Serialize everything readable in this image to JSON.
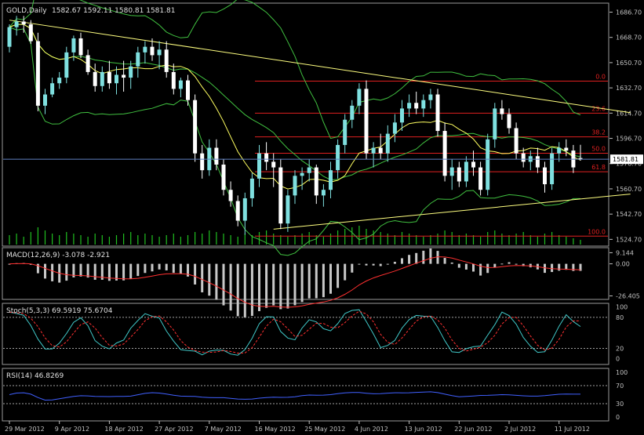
{
  "chart_data": [
    {
      "type": "candlestick",
      "panel": "price",
      "title": "GOLD,Daily",
      "ohlc_label": "1582.67 1592.11 1580.81 1581.81",
      "last_price": "1581.81",
      "y_ticks": [
        "1686.70",
        "1668.70",
        "1650.70",
        "1632.70",
        "1614.70",
        "1596.70",
        "1578.70",
        "1560.70",
        "1542.70",
        "1524.70"
      ],
      "ylim": [
        1521,
        1692
      ],
      "bull_color": "#7fe0e0",
      "bear_color": "#ffffff",
      "candles": [
        [
          1662,
          1678,
          1658,
          1676
        ],
        [
          1676,
          1684,
          1670,
          1680
        ],
        [
          1680,
          1684,
          1672,
          1678
        ],
        [
          1678,
          1681,
          1664,
          1666
        ],
        [
          1666,
          1672,
          1616,
          1620
        ],
        [
          1620,
          1632,
          1614,
          1628
        ],
        [
          1628,
          1640,
          1626,
          1636
        ],
        [
          1636,
          1644,
          1632,
          1640
        ],
        [
          1640,
          1662,
          1636,
          1658
        ],
        [
          1658,
          1670,
          1652,
          1668
        ],
        [
          1668,
          1672,
          1654,
          1656
        ],
        [
          1656,
          1660,
          1642,
          1644
        ],
        [
          1644,
          1650,
          1630,
          1634
        ],
        [
          1634,
          1648,
          1630,
          1644
        ],
        [
          1644,
          1652,
          1632,
          1636
        ],
        [
          1636,
          1648,
          1628,
          1642
        ],
        [
          1642,
          1652,
          1630,
          1640
        ],
        [
          1640,
          1652,
          1632,
          1648
        ],
        [
          1648,
          1662,
          1640,
          1658
        ],
        [
          1658,
          1666,
          1650,
          1662
        ],
        [
          1662,
          1668,
          1652,
          1656
        ],
        [
          1656,
          1666,
          1646,
          1660
        ],
        [
          1660,
          1666,
          1640,
          1644
        ],
        [
          1644,
          1650,
          1628,
          1632
        ],
        [
          1632,
          1640,
          1626,
          1638
        ],
        [
          1638,
          1642,
          1620,
          1624
        ],
        [
          1624,
          1628,
          1580,
          1586
        ],
        [
          1586,
          1592,
          1568,
          1574
        ],
        [
          1574,
          1596,
          1570,
          1590
        ],
        [
          1590,
          1596,
          1574,
          1578
        ],
        [
          1578,
          1582,
          1556,
          1560
        ],
        [
          1560,
          1566,
          1548,
          1552
        ],
        [
          1552,
          1556,
          1534,
          1538
        ],
        [
          1538,
          1558,
          1528,
          1554
        ],
        [
          1554,
          1572,
          1548,
          1568
        ],
        [
          1568,
          1592,
          1562,
          1586
        ],
        [
          1586,
          1594,
          1574,
          1580
        ],
        [
          1580,
          1586,
          1562,
          1576
        ],
        [
          1576,
          1582,
          1532,
          1536
        ],
        [
          1536,
          1560,
          1530,
          1556
        ],
        [
          1556,
          1574,
          1550,
          1570
        ],
        [
          1570,
          1576,
          1560,
          1572
        ],
        [
          1572,
          1582,
          1566,
          1576
        ],
        [
          1576,
          1578,
          1550,
          1556
        ],
        [
          1556,
          1564,
          1548,
          1560
        ],
        [
          1560,
          1580,
          1554,
          1574
        ],
        [
          1574,
          1596,
          1568,
          1592
        ],
        [
          1592,
          1614,
          1586,
          1610
        ],
        [
          1610,
          1624,
          1604,
          1620
        ],
        [
          1620,
          1636,
          1614,
          1632
        ],
        [
          1632,
          1638,
          1582,
          1586
        ],
        [
          1586,
          1594,
          1576,
          1590
        ],
        [
          1590,
          1600,
          1582,
          1586
        ],
        [
          1586,
          1606,
          1580,
          1600
        ],
        [
          1600,
          1614,
          1594,
          1608
        ],
        [
          1608,
          1624,
          1602,
          1618
        ],
        [
          1618,
          1628,
          1612,
          1622
        ],
        [
          1622,
          1630,
          1614,
          1618
        ],
        [
          1618,
          1628,
          1612,
          1624
        ],
        [
          1624,
          1632,
          1618,
          1628
        ],
        [
          1628,
          1632,
          1598,
          1602
        ],
        [
          1602,
          1608,
          1566,
          1570
        ],
        [
          1570,
          1582,
          1560,
          1576
        ],
        [
          1576,
          1580,
          1562,
          1566
        ],
        [
          1566,
          1584,
          1562,
          1580
        ],
        [
          1580,
          1588,
          1570,
          1576
        ],
        [
          1576,
          1580,
          1556,
          1560
        ],
        [
          1560,
          1600,
          1556,
          1596
        ],
        [
          1596,
          1622,
          1590,
          1618
        ],
        [
          1618,
          1624,
          1610,
          1614
        ],
        [
          1614,
          1618,
          1600,
          1604
        ],
        [
          1604,
          1608,
          1582,
          1586
        ],
        [
          1586,
          1590,
          1576,
          1580
        ],
        [
          1580,
          1588,
          1574,
          1584
        ],
        [
          1584,
          1590,
          1572,
          1576
        ],
        [
          1576,
          1580,
          1558,
          1564
        ],
        [
          1564,
          1590,
          1560,
          1586
        ],
        [
          1586,
          1594,
          1580,
          1590
        ],
        [
          1590,
          1596,
          1584,
          1588
        ],
        [
          1588,
          1592,
          1572,
          1576
        ],
        [
          1582.67,
          1592.11,
          1580.81,
          1581.81
        ]
      ],
      "volume": [
        12,
        14,
        10,
        16,
        22,
        18,
        14,
        12,
        16,
        14,
        12,
        10,
        14,
        12,
        10,
        12,
        14,
        16,
        12,
        14,
        12,
        10,
        12,
        14,
        10,
        12,
        16,
        14,
        18,
        16,
        14,
        12,
        10,
        14,
        12,
        16,
        18,
        14,
        12,
        10,
        12,
        14,
        16,
        12,
        10,
        14,
        18,
        20,
        22,
        24,
        20,
        18,
        16,
        14,
        12,
        16,
        14,
        12,
        10,
        12,
        14,
        18,
        16,
        12,
        14,
        12,
        10,
        16,
        18,
        14,
        12,
        14,
        16,
        12,
        10,
        14,
        16,
        12,
        10,
        8,
        6
      ],
      "fibonacci_levels": [
        {
          "label": "0.0",
          "value": 1637.5
        },
        {
          "label": "23.6",
          "value": 1614.7
        },
        {
          "label": "38.2",
          "value": 1597.8
        },
        {
          "label": "50.0",
          "value": 1586.1
        },
        {
          "label": "61.8",
          "value": 1572.9
        },
        {
          "label": "100.0",
          "value": 1527
        }
      ],
      "trendlines": [
        {
          "name": "resistance",
          "from": [
            0,
            1681
          ],
          "to": [
            87,
            1615
          ]
        },
        {
          "name": "support",
          "from": [
            37,
            1532
          ],
          "to": [
            87,
            1557
          ]
        }
      ]
    },
    {
      "type": "histogram",
      "panel": "macd",
      "title": "MACD(12,26,9) -3.078 -2.921",
      "y_ticks": [
        "9.144",
        "0.00",
        "-26.405"
      ],
      "ylim": [
        -28,
        12
      ],
      "signal_color": "#ff3030"
    },
    {
      "type": "line",
      "panel": "stochastic",
      "title": "Stoch(5,3,3) 69.5919 75.6704",
      "y_ticks": [
        "100",
        "80",
        "20",
        "0"
      ],
      "ylim": [
        -8,
        104
      ],
      "levels": [
        80,
        20
      ],
      "main_color": "#40c8c8",
      "signal_color": "#ff3030"
    },
    {
      "type": "line",
      "panel": "rsi",
      "title": "RSI(14) 46.8269",
      "y_ticks": [
        "100",
        "70",
        "30",
        "0"
      ],
      "ylim": [
        -5,
        105
      ],
      "levels": [
        70,
        30
      ],
      "line_color": "#4060ff"
    }
  ],
  "x_axis": {
    "labels": [
      "29 Mar 2012",
      "9 Apr 2012",
      "18 Apr 2012",
      "27 Apr 2012",
      "7 May 2012",
      "16 May 2012",
      "25 May 2012",
      "4 Jun 2012",
      "13 Jun 2012",
      "22 Jun 2012",
      "2 Jul 2012",
      "11 Jul 2012"
    ],
    "label_bars": [
      0,
      7,
      14,
      21,
      28,
      35,
      42,
      49,
      56,
      63,
      70,
      77
    ]
  },
  "colors": {
    "background": "#000000",
    "axis": "#c0c0c0",
    "grid": "#3a3a3a",
    "fib": "#e02020",
    "trendline": "#ffff80",
    "bollinger": "#40c040",
    "moving_average": "#ffff60",
    "crosshair": "#6080c0",
    "volume": "#20c020"
  }
}
